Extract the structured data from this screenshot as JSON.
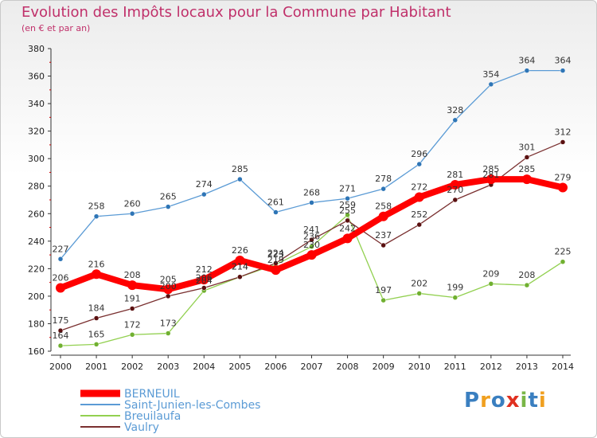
{
  "title": "Evolution des Impôts locaux pour la Commune par Habitant",
  "subtitle": "(en € et par an)",
  "logo": {
    "text": "Proxiti",
    "colors": [
      "#3a7fc0",
      "#f0a020",
      "#3a7fc0",
      "#e03020",
      "#7ab648",
      "#3a7fc0",
      "#f0a020"
    ]
  },
  "chart_data": {
    "type": "line",
    "title": "Evolution des Impôts locaux pour la Commune par Habitant",
    "subtitle": "(en € et par an)",
    "x": [
      "2000",
      "2001",
      "2002",
      "2003",
      "2004",
      "2005",
      "2006",
      "2007",
      "2008",
      "2009",
      "2010",
      "2011",
      "2012",
      "2013",
      "2014"
    ],
    "ylim": [
      160,
      380
    ],
    "yticks": [
      160,
      180,
      200,
      220,
      240,
      260,
      280,
      300,
      320,
      340,
      360,
      380
    ],
    "grid": false,
    "legend_position": "bottom-left",
    "series": [
      {
        "name": "Saint-Junien-les-Combes",
        "color": "#5b9bd5",
        "point_color": "#2e75b6",
        "values": [
          227,
          258,
          260,
          265,
          274,
          285,
          261,
          268,
          271,
          278,
          296,
          328,
          354,
          364,
          364
        ]
      },
      {
        "name": "Breuilaufa",
        "color": "#92d050",
        "point_color": "#70b030",
        "values": [
          164,
          165,
          172,
          173,
          204,
          214,
          223,
          236,
          259,
          197,
          202,
          199,
          209,
          208,
          225
        ]
      },
      {
        "name": "Vaulry",
        "color": "#7a3030",
        "point_color": "#5a1010",
        "values": [
          175,
          184,
          191,
          200,
          206,
          214,
          224,
          241,
          255,
          237,
          252,
          270,
          281,
          301,
          312
        ]
      },
      {
        "name": "BERNEUIL",
        "color": "#ff0000",
        "point_color": "#ff0000",
        "values": [
          206,
          216,
          208,
          205,
          212,
          226,
          219,
          230,
          242,
          258,
          272,
          281,
          285,
          285,
          279
        ]
      }
    ],
    "legend_order": [
      "BERNEUIL",
      "Saint-Junien-les-Combes",
      "Breuilaufa",
      "Vaulry"
    ]
  }
}
